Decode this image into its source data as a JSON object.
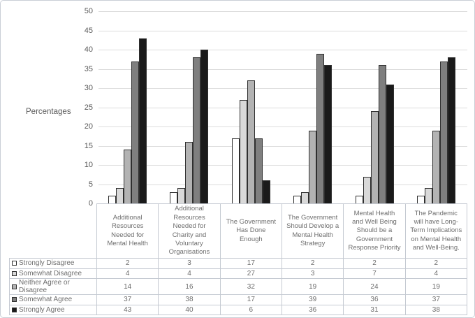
{
  "figure": {
    "ylabel": "Percentages"
  },
  "y_axis": {
    "tick_labels": [
      "50",
      "45",
      "40",
      "35",
      "30",
      "25",
      "20",
      "15",
      "10",
      "5",
      "0"
    ]
  },
  "chart_data": {
    "type": "bar",
    "title": "",
    "xlabel": "",
    "ylabel": "Percentages",
    "ylim": [
      0,
      50
    ],
    "ytick_step": 5,
    "grid": true,
    "legend_position": "table-left-below",
    "categories": [
      "Additional Resources Needed for Mental Health",
      "Additional Resources Needed for Charity and Voluntary Organisations",
      "The Government Has Done Enough",
      "The Government Should Develop a Mental Health Strategy",
      "Mental Health and Well Being Should be a Government Response Priority",
      "The Pandemic will have Long-Term Implications on Mental Health and Well-Being."
    ],
    "series": [
      {
        "name": "Strongly Disagree",
        "color": "#ffffff",
        "values": [
          2,
          3,
          17,
          2,
          2,
          2
        ]
      },
      {
        "name": "Somewhat Disagree",
        "color": "#d9d9d9",
        "values": [
          4,
          4,
          27,
          3,
          7,
          4
        ]
      },
      {
        "name": "Neither Agree or Disagree",
        "color": "#b3b3b3",
        "values": [
          14,
          16,
          32,
          19,
          24,
          19
        ]
      },
      {
        "name": "Somewhat Agree",
        "color": "#7f7f7f",
        "values": [
          37,
          38,
          17,
          39,
          36,
          37
        ]
      },
      {
        "name": "Strongly Agree",
        "color": "#1a1a1a",
        "values": [
          43,
          40,
          6,
          36,
          31,
          38
        ]
      }
    ]
  },
  "colors": {
    "grid": "#dcdcdc",
    "table_border": "#c5cad2",
    "text": "#595959",
    "bar_border": "#2f2f2f"
  }
}
